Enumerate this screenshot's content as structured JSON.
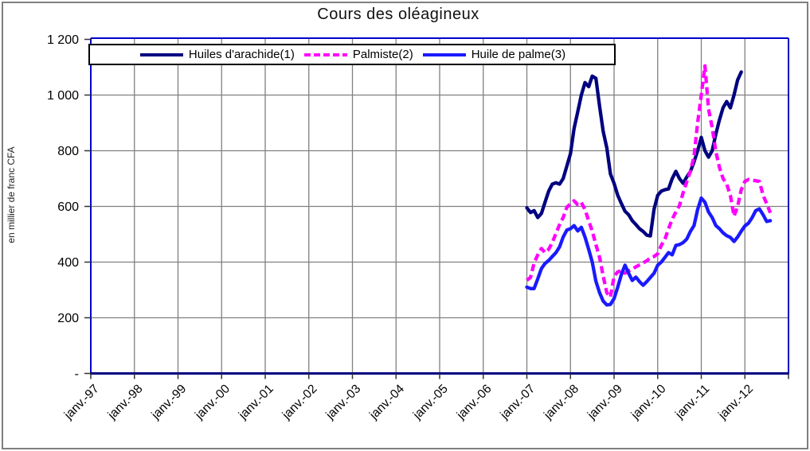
{
  "title": "Cours des oléagineux",
  "y_axis": {
    "label": "en millier de franc CFA",
    "ticks": [
      {
        "label": "1 200",
        "value": 1200
      },
      {
        "label": "1 000",
        "value": 1000
      },
      {
        "label": "800",
        "value": 800
      },
      {
        "label": "600",
        "value": 600
      },
      {
        "label": "400",
        "value": 400
      },
      {
        "label": "200",
        "value": 200
      },
      {
        "label": "-",
        "value": 0
      }
    ]
  },
  "x_axis": {
    "ticks": [
      "janv.-97",
      "janv.-98",
      "janv.-99",
      "janv.-00",
      "janv.-01",
      "janv.-02",
      "janv.-03",
      "janv.-04",
      "janv.-05",
      "janv.-06",
      "janv.-07",
      "janv.-08",
      "janv.-09",
      "janv.-10",
      "janv.-11",
      "janv.-12"
    ]
  },
  "legend": {
    "items": [
      {
        "label": "Huiles d'arachide(1)",
        "color": "#000080",
        "style": "solid"
      },
      {
        "label": "Palmiste(2)",
        "color": "#FF00FF",
        "style": "dashed"
      },
      {
        "label": "Huile de palme(3)",
        "color": "#1A1AFF",
        "style": "solid"
      }
    ]
  },
  "colors": {
    "grid": "#808080",
    "frame": "#0000CC",
    "axis_bottom": "#000080",
    "tick": "#333333",
    "outer_border": "#7F7F7F"
  },
  "chart_data": {
    "type": "line",
    "title": "Cours des oléagineux",
    "ylabel": "en millier de franc CFA",
    "ylim": [
      0,
      1200
    ],
    "grid": true,
    "legend_position": "top",
    "x_range_labels": [
      "janv.-97",
      "janv.-12"
    ],
    "x_unit": "month",
    "data_start_label": "janv.-07",
    "series": [
      {
        "name": "Huiles d'arachide(1)",
        "color": "#000080",
        "style": "solid",
        "start": "janv.-07",
        "end": "déc.-11",
        "values": [
          595,
          578,
          585,
          560,
          575,
          615,
          655,
          680,
          685,
          680,
          700,
          745,
          790,
          880,
          940,
          1000,
          1045,
          1030,
          1068,
          1060,
          960,
          870,
          810,
          717,
          683,
          640,
          611,
          583,
          570,
          549,
          535,
          520,
          510,
          497,
          494,
          590,
          640,
          655,
          660,
          663,
          700,
          726,
          700,
          683,
          706,
          725,
          760,
          800,
          848,
          800,
          777,
          800,
          860,
          911,
          955,
          977,
          954,
          1000,
          1054,
          1083
        ]
      },
      {
        "name": "Palmiste(2)",
        "color": "#FF00FF",
        "style": "dashed",
        "start": "janv.-07",
        "end": "août-12",
        "values": [
          335,
          345,
          397,
          426,
          449,
          434,
          446,
          470,
          503,
          535,
          560,
          597,
          610,
          620,
          606,
          614,
          589,
          549,
          511,
          463,
          417,
          350,
          290,
          274,
          349,
          365,
          369,
          360,
          369,
          375,
          383,
          390,
          397,
          405,
          415,
          420,
          430,
          460,
          483,
          520,
          554,
          580,
          603,
          649,
          689,
          726,
          780,
          900,
          1000,
          1105,
          950,
          883,
          797,
          740,
          700,
          680,
          640,
          565,
          600,
          660,
          690,
          697,
          694,
          692,
          690,
          640,
          610,
          577
        ]
      },
      {
        "name": "Huile de palme(3)",
        "color": "#1A1AFF",
        "style": "solid",
        "start": "janv.-07",
        "end": "août-12",
        "values": [
          310,
          305,
          305,
          340,
          377,
          395,
          406,
          420,
          434,
          455,
          490,
          515,
          520,
          531,
          512,
          525,
          490,
          446,
          400,
          331,
          290,
          260,
          246,
          248,
          269,
          310,
          355,
          389,
          360,
          334,
          346,
          330,
          317,
          330,
          345,
          360,
          389,
          400,
          417,
          434,
          426,
          460,
          463,
          470,
          483,
          510,
          531,
          589,
          630,
          615,
          580,
          560,
          531,
          520,
          505,
          495,
          489,
          474,
          490,
          511,
          530,
          540,
          560,
          585,
          591,
          570,
          546,
          549
        ]
      }
    ]
  }
}
